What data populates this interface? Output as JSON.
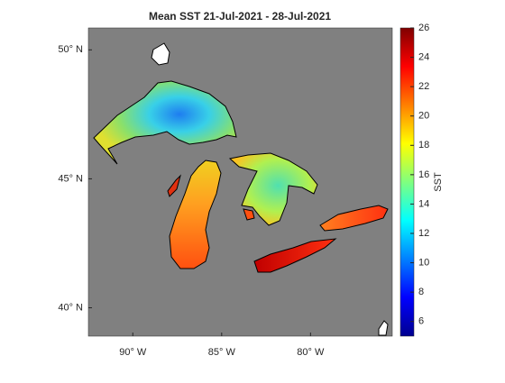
{
  "chart_data": {
    "type": "map",
    "title": "Mean SST 21-Jul-2021 - 28-Jul-2021",
    "xlim": [
      -92.5,
      -75.4
    ],
    "xticks": [
      {
        "value": -90,
        "label": "90° W"
      },
      {
        "value": -85,
        "label": "85° W"
      },
      {
        "value": -80,
        "label": "80° W"
      }
    ],
    "ylim": [
      38.9,
      50.85
    ],
    "yticks": [
      {
        "value": 40,
        "label": "40° N"
      },
      {
        "value": 45,
        "label": "45° N"
      },
      {
        "value": 50,
        "label": "50° N"
      }
    ],
    "colorbar": {
      "label": "SST",
      "lim": [
        5,
        26
      ],
      "ticks": [
        6,
        8,
        10,
        12,
        14,
        16,
        18,
        20,
        22,
        24,
        26
      ]
    }
  }
}
